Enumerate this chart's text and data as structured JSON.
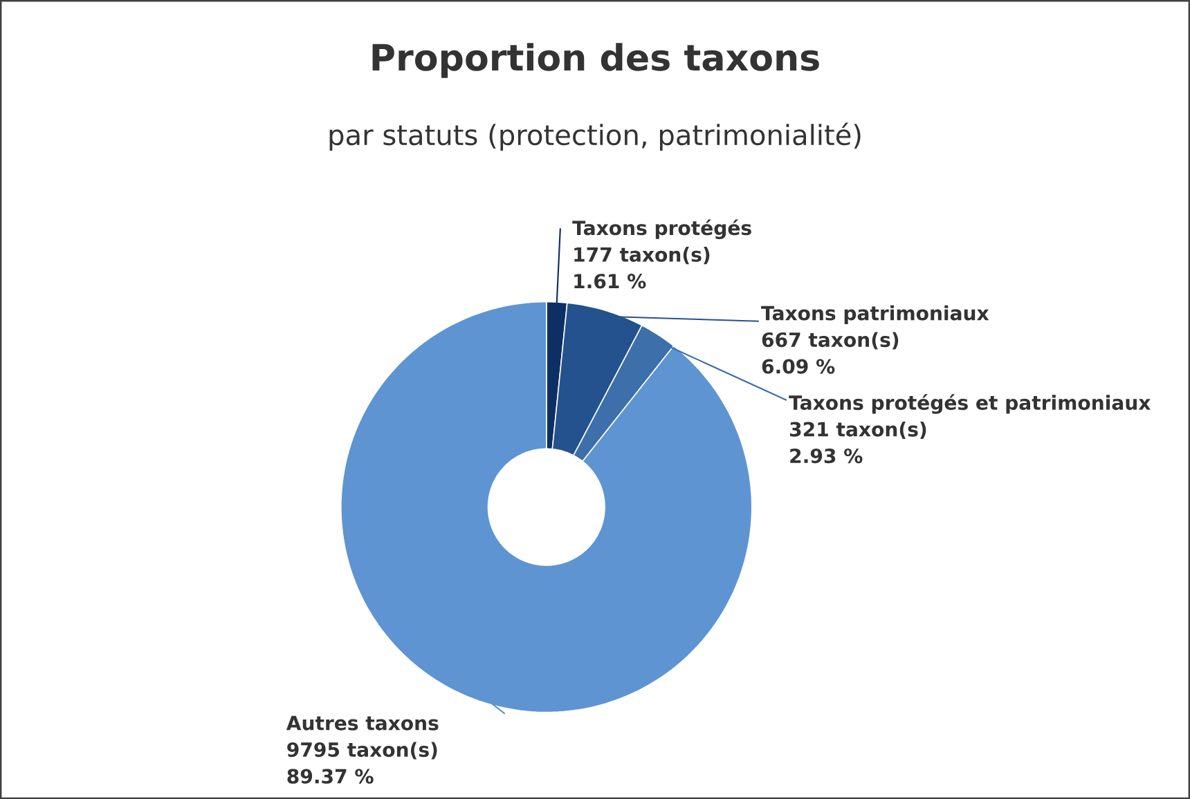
{
  "chart_data": {
    "type": "donut",
    "title": "Proportion des taxons",
    "subtitle": "par statuts (protection, patrimonialité)",
    "categories": [
      "Taxons protégés",
      "Taxons patrimoniaux",
      "Taxons protégés et patrimoniaux",
      "Autres taxons"
    ],
    "values": [
      177,
      667,
      321,
      9795
    ],
    "colors": [
      "#0e2f63",
      "#24528f",
      "#3d6faa",
      "#5e94d2"
    ],
    "value_labels": [
      "177 taxon(s)",
      "667 taxon(s)",
      "321 taxon(s)",
      "9795 taxon(s)"
    ],
    "annotations": [
      "1.61 %",
      "6.09 %",
      "2.93 %",
      "89.37 %"
    ]
  }
}
